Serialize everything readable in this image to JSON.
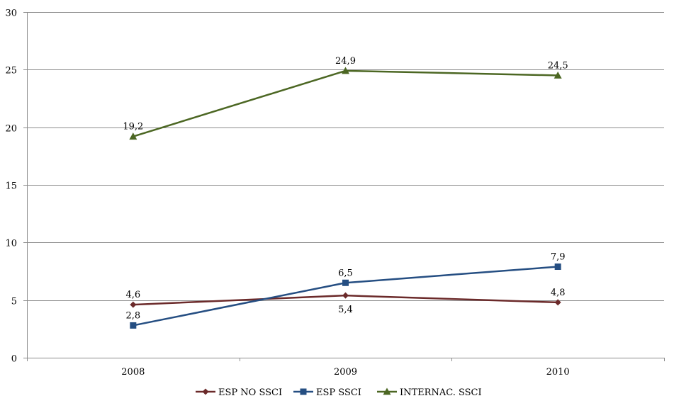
{
  "chart_data": {
    "type": "line",
    "categories": [
      "2008",
      "2009",
      "2010"
    ],
    "ylim": [
      0,
      30
    ],
    "yticks": [
      0,
      5,
      10,
      15,
      20,
      25,
      30
    ],
    "grid": true,
    "legend_position": "bottom",
    "series": [
      {
        "name": "ESP NO SSCI",
        "values": [
          4.6,
          5.4,
          4.8
        ],
        "labels": [
          "4,6",
          "5,4",
          "4,8"
        ],
        "label_position": [
          "above",
          "below",
          "above"
        ],
        "color": "#6b2a2a",
        "marker": "diamond"
      },
      {
        "name": "ESP SSCI",
        "values": [
          2.8,
          6.5,
          7.9
        ],
        "labels": [
          "2,8",
          "6,5",
          "7,9"
        ],
        "label_position": [
          "above",
          "above",
          "above"
        ],
        "color": "#254e82",
        "marker": "square"
      },
      {
        "name": "INTERNAC. SSCI",
        "values": [
          19.2,
          24.9,
          24.5
        ],
        "labels": [
          "19,2",
          "24,9",
          "24,5"
        ],
        "label_position": [
          "above",
          "above",
          "above"
        ],
        "color": "#4c6723",
        "marker": "triangle"
      }
    ]
  }
}
